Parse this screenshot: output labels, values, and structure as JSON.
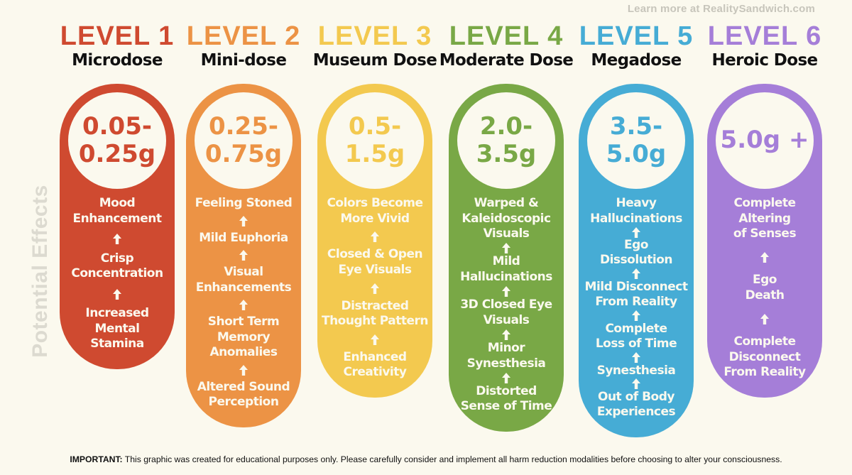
{
  "source": "Learn more at RealitySandwich.com",
  "side_label": "Potential Effects",
  "levels": [
    {
      "level": "LEVEL 1",
      "dose_name": "Microdose",
      "amount": "0.05-\n0.25g",
      "color": "#cf4a30",
      "effects": [
        "Mood\nEnhancement",
        "Crisp\nConcentration",
        "Increased\nMental\nStamina"
      ]
    },
    {
      "level": "LEVEL 2",
      "dose_name": "Mini-dose",
      "amount": "0.25-\n0.75g",
      "color": "#ec9345",
      "effects": [
        "Feeling Stoned",
        "Mild Euphoria",
        "Visual\nEnhancements",
        "Short Term\nMemory\nAnomalies",
        "Altered Sound\nPerception"
      ]
    },
    {
      "level": "LEVEL 3",
      "dose_name": "Museum Dose",
      "amount": "0.5-\n1.5g",
      "color": "#f3c94f",
      "effects": [
        "Colors Become\nMore Vivid",
        "Closed & Open\nEye Visuals",
        "Distracted\nThought Pattern",
        "Enhanced\nCreativity"
      ]
    },
    {
      "level": "LEVEL 4",
      "dose_name": "Moderate Dose",
      "amount": "2.0-\n3.5g",
      "color": "#79a846",
      "effects": [
        "Warped &\nKaleidoscopic\nVisuals",
        "Mild\nHallucinations",
        "3D Closed Eye\nVisuals",
        "Minor\nSynesthesia",
        "Distorted\nSense of Time"
      ]
    },
    {
      "level": "LEVEL 5",
      "dose_name": "Megadose",
      "amount": "3.5-\n5.0g",
      "color": "#46acd5",
      "effects": [
        "Heavy\nHallucinations",
        "Ego\nDissolution",
        "Mild Disconnect\nFrom Reality",
        "Complete\nLoss of Time",
        "Synesthesia",
        "Out of Body\nExperiences"
      ]
    },
    {
      "level": "LEVEL 6",
      "dose_name": "Heroic Dose",
      "amount": "5.0g +",
      "color": "#a57ed8",
      "effects": [
        "Complete\nAltering\nof Senses",
        "Ego\nDeath",
        "Complete\nDisconnect\nFrom Reality"
      ]
    }
  ],
  "footer": {
    "important": "IMPORTANT:",
    "text": " This graphic was created for educational purposes only. Please carefully consider and implement all harm reduction modalities before choosing to alter your consciousness."
  }
}
